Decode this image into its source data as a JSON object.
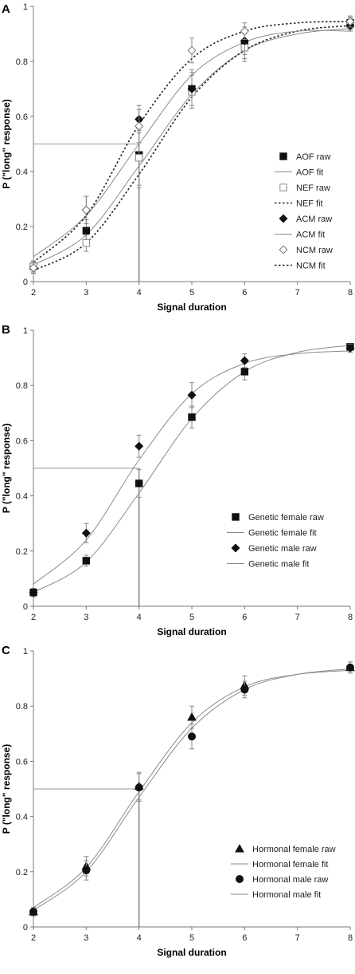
{
  "panels": [
    {
      "label": "A",
      "chart_data": {
        "type": "line",
        "xlabel": "Signal duration",
        "ylabel": "P (\"long\" response)",
        "xlim": [
          2,
          8
        ],
        "ylim": [
          0,
          1
        ],
        "xticks": [
          "2",
          "3",
          "4",
          "5",
          "6",
          "7",
          "8"
        ],
        "yticks": [
          "0",
          "0.2",
          "0.4",
          "0.6",
          "0.8",
          "1"
        ],
        "reference_lines": {
          "y": 0.5,
          "x": 4
        },
        "legend_position": "right",
        "series": [
          {
            "name": "AOF raw",
            "kind": "raw",
            "marker": "square-filled",
            "x": [
              2,
              3,
              4,
              5,
              6,
              8
            ],
            "y": [
              0.055,
              0.185,
              0.46,
              0.7,
              0.86,
              0.94
            ],
            "err": [
              0.02,
              0.04,
              0.12,
              0.07,
              0.05,
              0.02
            ]
          },
          {
            "name": "AOF fit",
            "kind": "fit",
            "style": "solid",
            "x": [
              2,
              3,
              4,
              5,
              6,
              7,
              8
            ],
            "y": [
              0.06,
              0.17,
              0.42,
              0.68,
              0.84,
              0.9,
              0.92
            ]
          },
          {
            "name": "NEF raw",
            "kind": "raw",
            "marker": "square-open",
            "x": [
              2,
              3,
              4,
              5,
              6,
              8
            ],
            "y": [
              0.055,
              0.14,
              0.45,
              0.69,
              0.85,
              0.935
            ],
            "err": [
              0.02,
              0.03,
              0.1,
              0.06,
              0.05,
              0.02
            ]
          },
          {
            "name": "NEF fit",
            "kind": "fit",
            "style": "dotted",
            "x": [
              2,
              3,
              4,
              5,
              6,
              7,
              8
            ],
            "y": [
              0.04,
              0.14,
              0.39,
              0.67,
              0.84,
              0.91,
              0.93
            ]
          },
          {
            "name": "ACM raw",
            "kind": "raw",
            "marker": "diamond-filled",
            "x": [
              2,
              3,
              4,
              5,
              6,
              8
            ],
            "y": [
              0.05,
              0.26,
              0.59,
              0.7,
              0.875,
              0.93
            ],
            "err": [
              0.02,
              0.05,
              0.05,
              0.06,
              0.05,
              0.02
            ]
          },
          {
            "name": "ACM fit",
            "kind": "fit",
            "style": "solid",
            "x": [
              2,
              3,
              4,
              5,
              6,
              7,
              8
            ],
            "y": [
              0.09,
              0.24,
              0.5,
              0.75,
              0.87,
              0.91,
              0.91
            ]
          },
          {
            "name": "NCM raw",
            "kind": "raw",
            "marker": "diamond-open",
            "x": [
              2,
              3,
              4,
              5,
              6,
              8
            ],
            "y": [
              0.05,
              0.26,
              0.565,
              0.84,
              0.91,
              0.945
            ],
            "err": [
              0.02,
              0.05,
              0.06,
              0.045,
              0.03,
              0.02
            ]
          },
          {
            "name": "NCM fit",
            "kind": "fit",
            "style": "dotted",
            "x": [
              2,
              3,
              4,
              5,
              6,
              7,
              8
            ],
            "y": [
              0.07,
              0.24,
              0.57,
              0.81,
              0.91,
              0.94,
              0.945
            ]
          }
        ]
      }
    },
    {
      "label": "B",
      "chart_data": {
        "type": "line",
        "xlabel": "Signal duration",
        "ylabel": "P (\"long\" response)",
        "xlim": [
          2,
          8
        ],
        "ylim": [
          0,
          1
        ],
        "xticks": [
          "2",
          "3",
          "4",
          "5",
          "6",
          "7",
          "8"
        ],
        "yticks": [
          "0",
          "0.2",
          "0.4",
          "0.6",
          "0.8",
          "1"
        ],
        "reference_lines": {
          "y": 0.5,
          "x": 4
        },
        "legend_position": "right",
        "series": [
          {
            "name": "Genetic female raw",
            "kind": "raw",
            "marker": "square-filled",
            "x": [
              2,
              3,
              4,
              5,
              6,
              8
            ],
            "y": [
              0.05,
              0.165,
              0.445,
              0.685,
              0.85,
              0.94
            ],
            "err": [
              0.015,
              0.02,
              0.05,
              0.04,
              0.03,
              0.01
            ]
          },
          {
            "name": "Genetic female fit",
            "kind": "fit",
            "style": "solid",
            "x": [
              2,
              3,
              4,
              5,
              6,
              7,
              8
            ],
            "y": [
              0.05,
              0.16,
              0.41,
              0.68,
              0.85,
              0.92,
              0.945
            ]
          },
          {
            "name": "Genetic male raw",
            "kind": "raw",
            "marker": "diamond-filled",
            "x": [
              2,
              3,
              4,
              5,
              6,
              8
            ],
            "y": [
              0.05,
              0.265,
              0.58,
              0.765,
              0.89,
              0.935
            ],
            "err": [
              0.015,
              0.035,
              0.04,
              0.045,
              0.025,
              0.015
            ]
          },
          {
            "name": "Genetic male fit",
            "kind": "fit",
            "style": "solid",
            "x": [
              2,
              3,
              4,
              5,
              6,
              7,
              8
            ],
            "y": [
              0.08,
              0.24,
              0.53,
              0.77,
              0.88,
              0.915,
              0.925
            ]
          }
        ]
      }
    },
    {
      "label": "C",
      "chart_data": {
        "type": "line",
        "xlabel": "Signal duration",
        "ylabel": "P (\"long\" response)",
        "xlim": [
          2,
          8
        ],
        "ylim": [
          0,
          1
        ],
        "xticks": [
          "2",
          "3",
          "4",
          "5",
          "6",
          "7",
          "8"
        ],
        "yticks": [
          "0",
          "0.2",
          "0.4",
          "0.6",
          "0.8",
          "1"
        ],
        "reference_lines": {
          "y": 0.5,
          "x": 4
        },
        "legend_position": "bottom-right",
        "series": [
          {
            "name": "Hormonal female raw",
            "kind": "raw",
            "marker": "triangle-filled",
            "x": [
              2,
              3,
              4,
              5,
              6,
              8
            ],
            "y": [
              0.055,
              0.22,
              0.51,
              0.76,
              0.875,
              0.94
            ],
            "err": [
              0.015,
              0.035,
              0.05,
              0.04,
              0.035,
              0.02
            ]
          },
          {
            "name": "Hormonal female fit",
            "kind": "fit",
            "style": "solid",
            "x": [
              2,
              3,
              4,
              5,
              6,
              7,
              8
            ],
            "y": [
              0.07,
              0.215,
              0.49,
              0.74,
              0.87,
              0.915,
              0.93
            ]
          },
          {
            "name": "Hormonal male raw",
            "kind": "raw",
            "marker": "circle-filled",
            "x": [
              2,
              3,
              4,
              5,
              6,
              8
            ],
            "y": [
              0.055,
              0.205,
              0.505,
              0.69,
              0.86,
              0.94
            ],
            "err": [
              0.015,
              0.035,
              0.05,
              0.045,
              0.03,
              0.02
            ]
          },
          {
            "name": "Hormonal male fit",
            "kind": "fit",
            "style": "solid",
            "x": [
              2,
              3,
              4,
              5,
              6,
              7,
              8
            ],
            "y": [
              0.06,
              0.2,
              0.47,
              0.72,
              0.86,
              0.915,
              0.935
            ]
          }
        ]
      }
    }
  ]
}
